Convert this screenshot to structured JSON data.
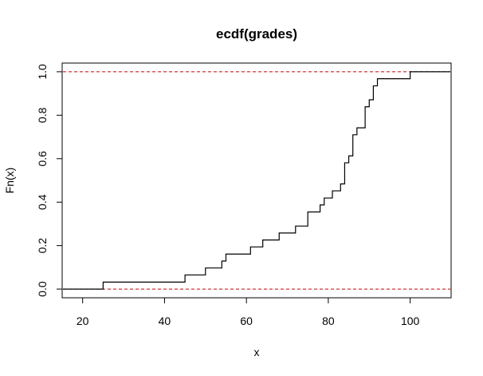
{
  "chart_data": {
    "type": "line",
    "subtype": "ecdf-step",
    "title": "ecdf(grades)",
    "xlabel": "x",
    "ylabel": "Fn(x)",
    "xlim": [
      15,
      110
    ],
    "ylim": [
      -0.04,
      1.04
    ],
    "x_ticks": [
      20,
      40,
      60,
      80,
      100
    ],
    "y_ticks": [
      0.0,
      0.2,
      0.4,
      0.6,
      0.8,
      1.0
    ],
    "x_tick_labels": [
      "20",
      "40",
      "60",
      "80",
      "100"
    ],
    "y_tick_labels": [
      "0.0",
      "0.2",
      "0.4",
      "0.6",
      "0.8",
      "1.0"
    ],
    "grid": false,
    "legend": "none",
    "reference_lines": [
      {
        "y": 0.0,
        "style": "dashed",
        "color": "#cc0000"
      },
      {
        "y": 1.0,
        "style": "dashed",
        "color": "#cc0000"
      }
    ],
    "step_color": "#000000",
    "points": [
      {
        "x": 25,
        "y": 0.032
      },
      {
        "x": 45,
        "y": 0.065
      },
      {
        "x": 50,
        "y": 0.097
      },
      {
        "x": 54,
        "y": 0.129
      },
      {
        "x": 55,
        "y": 0.161
      },
      {
        "x": 61,
        "y": 0.194
      },
      {
        "x": 64,
        "y": 0.226
      },
      {
        "x": 68,
        "y": 0.258
      },
      {
        "x": 72,
        "y": 0.29
      },
      {
        "x": 75,
        "y": 0.355
      },
      {
        "x": 78,
        "y": 0.387
      },
      {
        "x": 79,
        "y": 0.419
      },
      {
        "x": 81,
        "y": 0.452
      },
      {
        "x": 83,
        "y": 0.484
      },
      {
        "x": 84,
        "y": 0.581
      },
      {
        "x": 85,
        "y": 0.613
      },
      {
        "x": 86,
        "y": 0.71
      },
      {
        "x": 87,
        "y": 0.742
      },
      {
        "x": 89,
        "y": 0.839
      },
      {
        "x": 90,
        "y": 0.871
      },
      {
        "x": 91,
        "y": 0.935
      },
      {
        "x": 92,
        "y": 0.968
      },
      {
        "x": 100,
        "y": 1.0
      }
    ]
  }
}
